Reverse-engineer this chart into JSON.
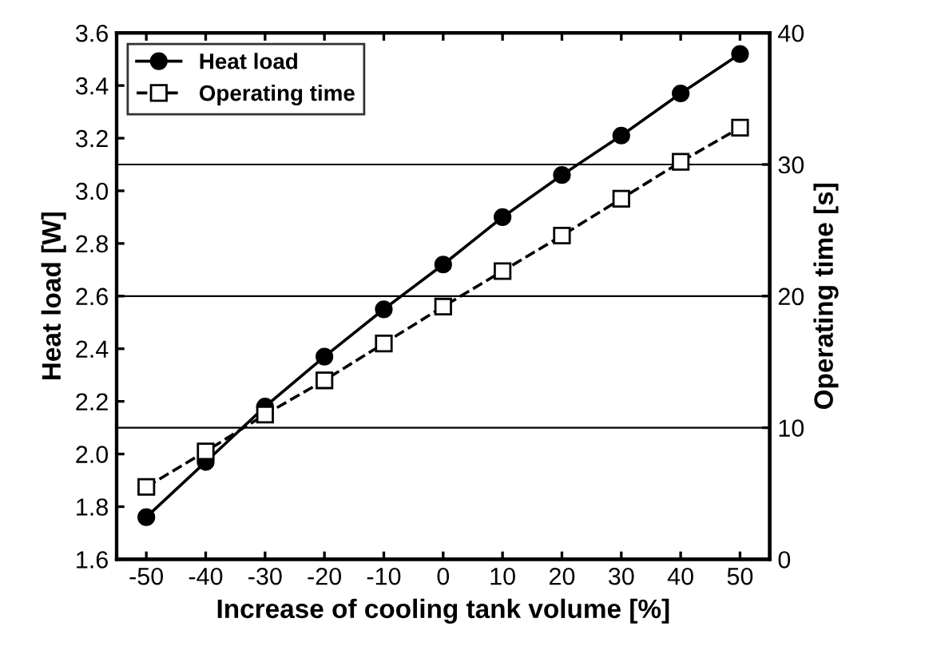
{
  "chart_data": {
    "type": "line",
    "xlabel": "Increase of cooling tank volume [%]",
    "ylabel": "Heat load [W]",
    "y2label": "Operating time [s]",
    "x": [
      -50,
      -40,
      -30,
      -20,
      -10,
      0,
      10,
      20,
      30,
      40,
      50
    ],
    "series": [
      {
        "name": "Heat load",
        "color": "#000000",
        "marker": "circle",
        "line_style": "solid",
        "values": [
          1.76,
          1.97,
          2.18,
          2.37,
          2.55,
          2.72,
          2.9,
          3.06,
          3.21,
          3.37,
          3.52
        ]
      },
      {
        "name": "Operating time",
        "color": "#000000",
        "marker": "square",
        "line_style": "dashed",
        "axis": "y2",
        "values": [
          5.5,
          8.2,
          11.0,
          13.6,
          16.4,
          19.2,
          21.9,
          24.6,
          27.4,
          30.2,
          32.8
        ]
      }
    ],
    "xlim": [
      -55,
      55
    ],
    "xticks": [
      -50,
      -40,
      -30,
      -20,
      -10,
      0,
      10,
      20,
      30,
      40,
      50
    ],
    "ylim": [
      1.6,
      3.6
    ],
    "yticks": [
      1.6,
      1.8,
      {
        "value": 2,
        "label": "2.0"
      },
      2.2,
      2.4,
      2.6,
      2.8,
      {
        "value": 3,
        "label": "3.0"
      },
      3.2,
      3.4,
      3.6
    ],
    "y2lim": [
      0,
      40
    ],
    "y2ticks": [
      0,
      10,
      20,
      30,
      40
    ],
    "grid": "y2",
    "legend": "top left"
  }
}
